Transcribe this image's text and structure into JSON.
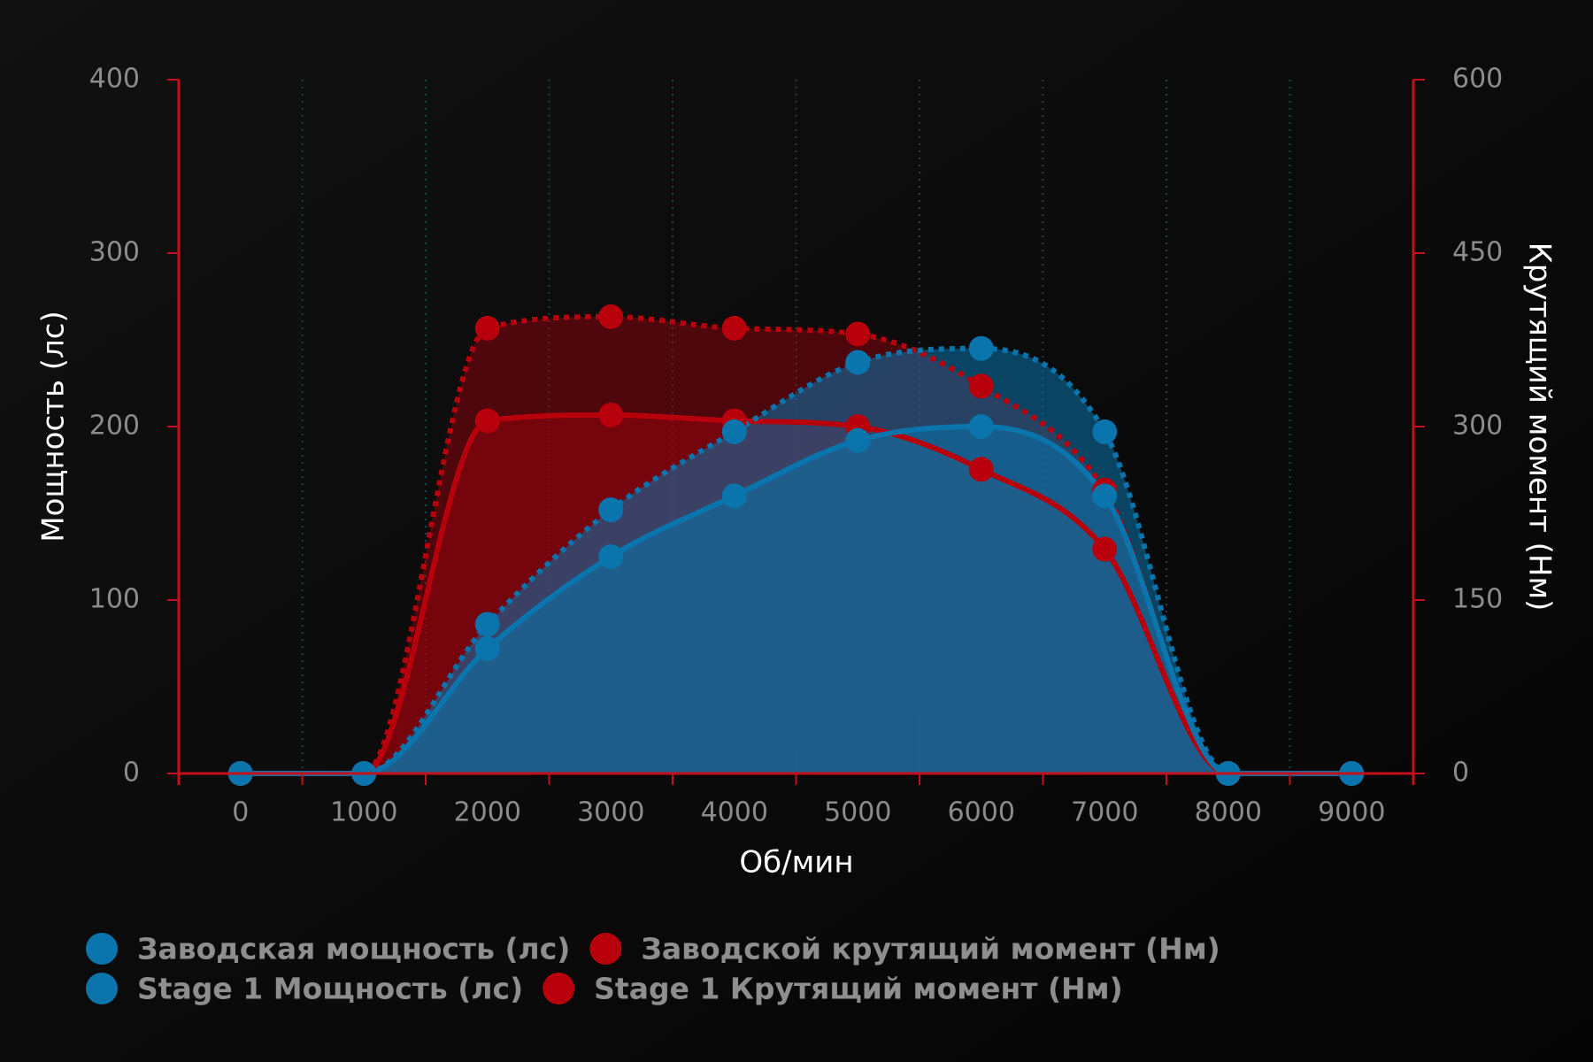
{
  "chart_data": {
    "type": "line",
    "x_label": "Об/мин",
    "y_label": "Мощность (лс)",
    "y2_label": "Крутящий момент (Нм)",
    "x": [
      0,
      1000,
      2000,
      3000,
      4000,
      5000,
      6000,
      7000,
      8000,
      9000
    ],
    "xlim": [
      -500,
      9500
    ],
    "xticks": [
      0,
      1000,
      2000,
      3000,
      4000,
      5000,
      6000,
      7000,
      8000,
      9000
    ],
    "x_minor_ticks": [
      500,
      1500,
      2500,
      3500,
      4500,
      5500,
      6500,
      7500,
      8500
    ],
    "ylim": [
      0,
      400
    ],
    "yticks": [
      0,
      100,
      200,
      300,
      400
    ],
    "y2lim": [
      0,
      600
    ],
    "y2ticks": [
      0,
      150,
      300,
      450,
      600
    ],
    "grid": true,
    "area": true,
    "series": [
      {
        "name": "Заводская мощность (лс)",
        "color": "#0a74ad",
        "dashed": false,
        "axis": "y",
        "values": [
          0,
          0,
          72,
          125,
          160,
          192,
          200,
          160,
          0,
          0
        ]
      },
      {
        "name": "Заводской крутящий момент (Нм)",
        "color": "#b8000c",
        "dashed": false,
        "axis": "y2",
        "values": [
          0,
          0,
          305,
          310,
          305,
          300,
          263,
          194,
          0,
          0
        ]
      },
      {
        "name": "Stage 1 Мощность (лс)",
        "color": "#0a74ad",
        "dashed": true,
        "axis": "y",
        "values": [
          0,
          0,
          86,
          152,
          197,
          237,
          245,
          197,
          0,
          0
        ]
      },
      {
        "name": "Stage 1 Крутящий момент (Нм)",
        "color": "#b8000c",
        "dashed": true,
        "axis": "y2",
        "values": [
          0,
          0,
          385,
          395,
          385,
          380,
          335,
          245,
          0,
          0
        ]
      }
    ]
  }
}
